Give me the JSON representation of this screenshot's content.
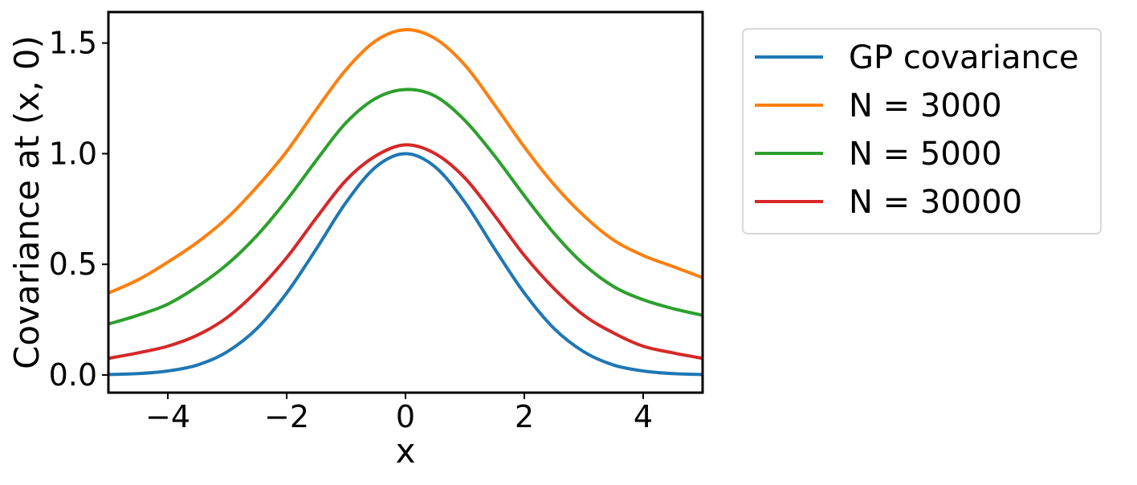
{
  "chart_data": {
    "type": "line",
    "title": "",
    "xlabel": "x",
    "ylabel": "Covariance at (x, 0)",
    "xlim": [
      -5,
      5
    ],
    "ylim": [
      -0.08,
      1.64
    ],
    "xticks": [
      -4,
      -2,
      0,
      2,
      4
    ],
    "xtick_labels": [
      "−4",
      "−2",
      "0",
      "2",
      "4"
    ],
    "yticks": [
      0.0,
      0.5,
      1.0,
      1.5
    ],
    "ytick_labels": [
      "0.0",
      "0.5",
      "1.0",
      "1.5"
    ],
    "grid": false,
    "legend_placement": "outside-top-right",
    "x": [
      -5,
      -4.5,
      -4,
      -3.5,
      -3,
      -2.5,
      -2,
      -1.5,
      -1,
      -0.5,
      0,
      0.5,
      1,
      1.5,
      2,
      2.5,
      3,
      3.5,
      4,
      4.5,
      5
    ],
    "series": [
      {
        "name": "GP covariance",
        "color": "#1f77b4",
        "values": [
          0.002,
          0.006,
          0.018,
          0.045,
          0.105,
          0.21,
          0.37,
          0.57,
          0.78,
          0.94,
          1.0,
          0.94,
          0.78,
          0.57,
          0.37,
          0.21,
          0.105,
          0.045,
          0.018,
          0.006,
          0.002
        ]
      },
      {
        "name": "N = 3000",
        "color": "#ff7f0e",
        "values": [
          0.37,
          0.43,
          0.51,
          0.6,
          0.71,
          0.85,
          1.01,
          1.2,
          1.38,
          1.51,
          1.56,
          1.52,
          1.4,
          1.22,
          1.03,
          0.86,
          0.72,
          0.61,
          0.54,
          0.49,
          0.44
        ]
      },
      {
        "name": "N = 5000",
        "color": "#2ca02c",
        "values": [
          0.23,
          0.27,
          0.32,
          0.4,
          0.5,
          0.63,
          0.79,
          0.97,
          1.14,
          1.25,
          1.29,
          1.26,
          1.15,
          0.99,
          0.81,
          0.64,
          0.5,
          0.4,
          0.34,
          0.3,
          0.27
        ]
      },
      {
        "name": "N = 30000",
        "color": "#d62728",
        "values": [
          0.075,
          0.1,
          0.13,
          0.18,
          0.26,
          0.38,
          0.53,
          0.71,
          0.88,
          0.99,
          1.04,
          1.0,
          0.89,
          0.72,
          0.54,
          0.39,
          0.27,
          0.19,
          0.13,
          0.1,
          0.075
        ]
      }
    ]
  }
}
